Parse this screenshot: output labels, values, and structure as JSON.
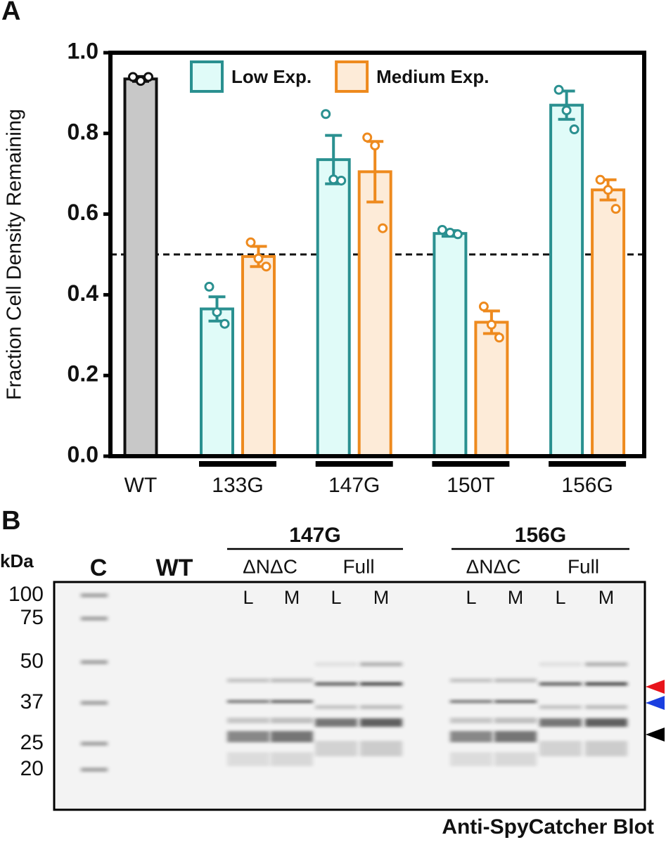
{
  "chart_data": {
    "type": "bar",
    "panel_label": "A",
    "ylabel": "Fraction Cell Density Remaining",
    "categories": [
      "WT",
      "133G",
      "147G",
      "150T",
      "156G"
    ],
    "series": [
      {
        "color": "#c8c8c8",
        "edge": "#111111",
        "values": [
          0.935,
          null,
          null,
          null,
          null
        ],
        "errors": [
          0.006,
          null,
          null,
          null,
          null
        ],
        "points": [
          [
            0.94,
            0.93,
            0.94
          ],
          null,
          null,
          null,
          null
        ]
      },
      {
        "name": "Low Exp.",
        "color": "#e0fbf8",
        "edge": "#2a9090",
        "values": [
          null,
          0.365,
          0.735,
          0.552,
          0.87
        ],
        "errors": [
          null,
          0.03,
          0.06,
          0.007,
          0.035
        ],
        "points": [
          null,
          [
            0.42,
            0.357,
            0.328
          ],
          [
            0.848,
            0.686,
            0.683
          ],
          [
            0.561,
            0.554,
            0.55
          ],
          [
            0.908,
            0.857,
            0.81
          ]
        ]
      },
      {
        "name": "Medium Exp.",
        "color": "#fdebd8",
        "edge": "#ee8a1e",
        "values": [
          null,
          0.495,
          0.705,
          0.332,
          0.66
        ],
        "errors": [
          null,
          0.025,
          0.075,
          0.028,
          0.025
        ],
        "points": [
          null,
          [
            0.53,
            0.49,
            0.47
          ],
          [
            0.79,
            0.77,
            0.565
          ],
          [
            0.371,
            0.326,
            0.294
          ],
          [
            0.685,
            0.66,
            0.613
          ]
        ]
      }
    ],
    "ylim": [
      0,
      1
    ],
    "yticks": [
      {
        "value": 0,
        "label": "0.0"
      },
      0.2,
      0.4,
      0.6,
      0.8,
      {
        "value": 1,
        "label": "1.0"
      }
    ],
    "reference_line": 0.5,
    "legend": "top"
  },
  "blot": {
    "panel_label": "B",
    "unit": "kDa",
    "lanes_left": [
      "C",
      "WT"
    ],
    "groups": [
      {
        "label": "147G",
        "subgroups": [
          {
            "label": "ΔNΔC",
            "lanes": [
              "L",
              "M"
            ]
          },
          {
            "label": "Full",
            "lanes": [
              "L",
              "M"
            ]
          }
        ]
      },
      {
        "label": "156G",
        "subgroups": [
          {
            "label": "ΔNΔC",
            "lanes": [
              "L",
              "M"
            ]
          },
          {
            "label": "Full",
            "lanes": [
              "L",
              "M"
            ]
          }
        ]
      }
    ],
    "markers": [
      100,
      75,
      50,
      37,
      25,
      20
    ],
    "caption": "Anti-SpyCatcher Blot"
  }
}
